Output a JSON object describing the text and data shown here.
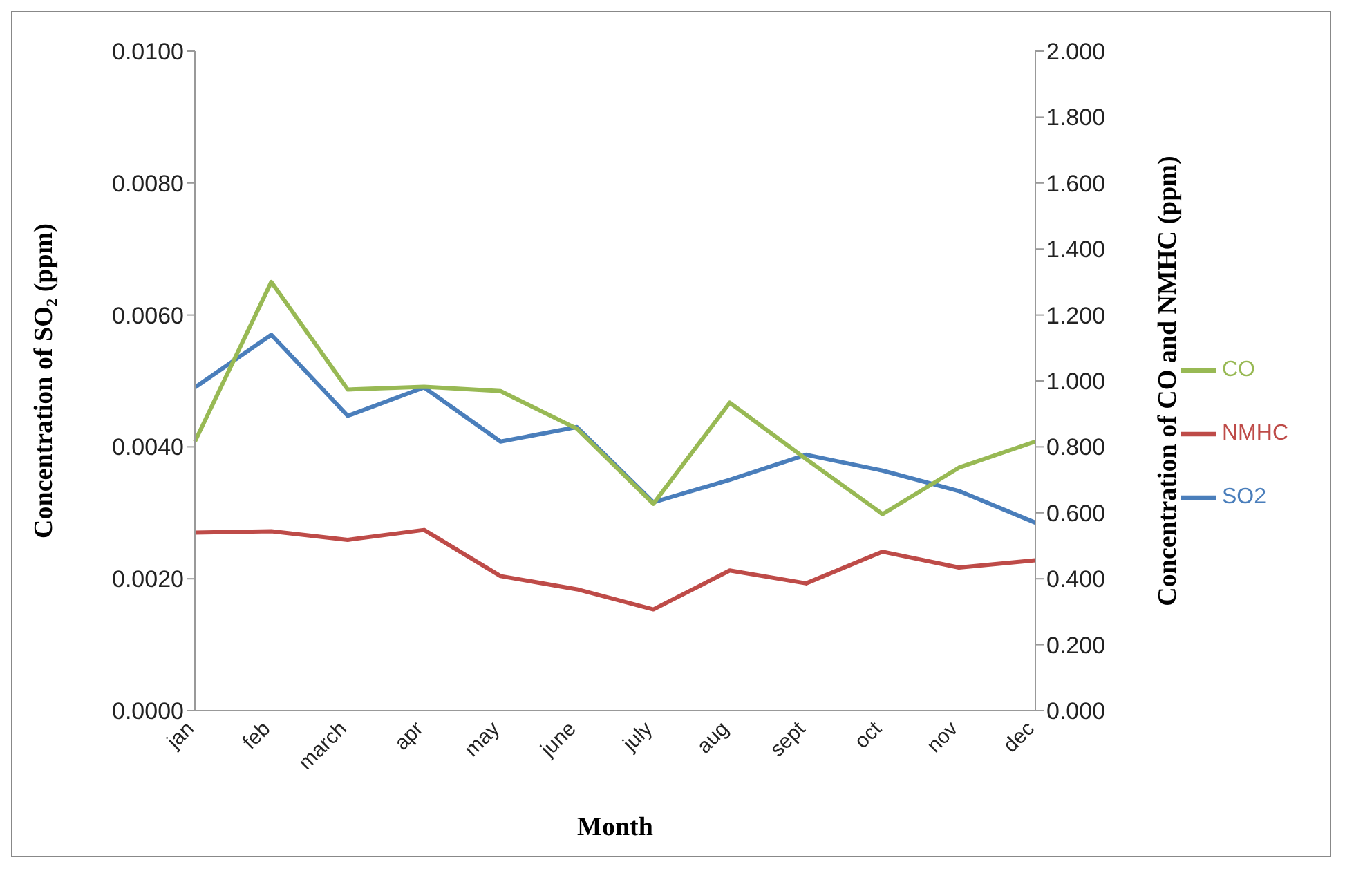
{
  "chart_data": {
    "type": "line",
    "xlabel": "Month",
    "ylabel": "Concentration of SO₂ (ppm)",
    "y2label": "Concentration of CO and NMHC (ppm)",
    "categories": [
      "jan",
      "feb",
      "march",
      "apr",
      "may",
      "june",
      "july",
      "aug",
      "sept",
      "oct",
      "nov",
      "dec"
    ],
    "series": [
      {
        "name": "SO2",
        "color": "#4a7ebb",
        "values": [
          0.0049,
          0.0057,
          0.00447,
          0.0049,
          0.00408,
          0.0043,
          0.00316,
          0.0035,
          0.00388,
          0.00364,
          0.00333,
          0.00285
        ]
      },
      {
        "name": "NMHC",
        "color": "#be4b48",
        "axis": "y2",
        "values": [
          0.54,
          0.544,
          0.518,
          0.548,
          0.408,
          0.368,
          0.307,
          0.425,
          0.386,
          0.482,
          0.434,
          0.456
        ]
      },
      {
        "name": "CO",
        "color": "#98b954",
        "axis": "y2",
        "values": [
          0.816,
          1.3,
          0.974,
          0.982,
          0.969,
          0.855,
          0.627,
          0.934,
          0.763,
          0.596,
          0.737,
          0.816
        ]
      }
    ],
    "ylim": [
      0,
      0.01
    ],
    "yticks": [
      {
        "value": 0,
        "label": "0.0000"
      },
      {
        "value": 0.002,
        "label": "0.0020"
      },
      {
        "value": 0.004,
        "label": "0.0040"
      },
      {
        "value": 0.006,
        "label": "0.0060"
      },
      {
        "value": 0.008,
        "label": "0.0080"
      },
      {
        "value": 0.01,
        "label": "0.0100"
      }
    ],
    "y2lim": [
      0,
      2
    ],
    "y2ticks": [
      {
        "value": 0,
        "label": "0.000"
      },
      {
        "value": 0.2,
        "label": "0.200"
      },
      {
        "value": 0.4,
        "label": "0.400"
      },
      {
        "value": 0.6,
        "label": "0.600"
      },
      {
        "value": 0.8,
        "label": "0.800"
      },
      {
        "value": 1,
        "label": "1.000"
      },
      {
        "value": 1.2,
        "label": "1.200"
      },
      {
        "value": 1.4,
        "label": "1.400"
      },
      {
        "value": 1.6,
        "label": "1.600"
      },
      {
        "value": 1.8,
        "label": "1.800"
      },
      {
        "value": 2,
        "label": "2.000"
      }
    ],
    "grid": false,
    "legend": "right",
    "marker": "none",
    "line_style": "solid"
  }
}
